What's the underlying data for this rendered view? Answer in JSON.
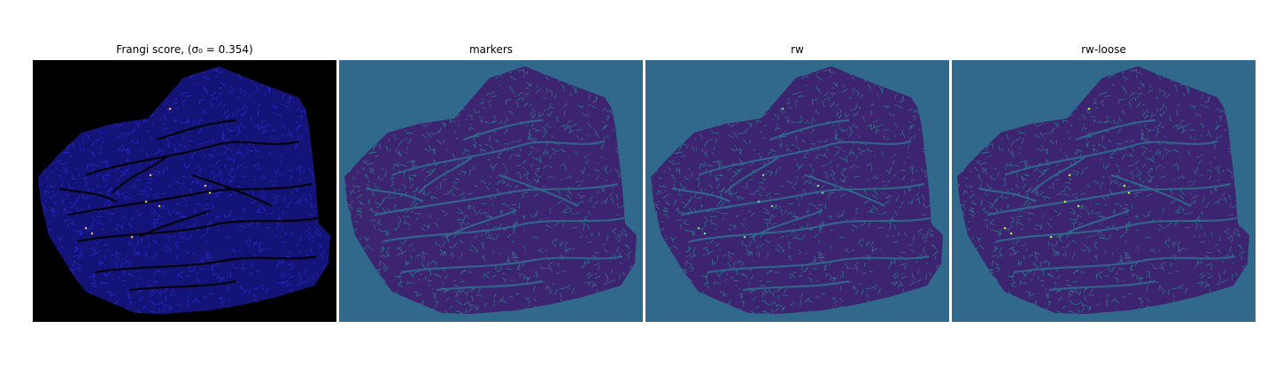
{
  "figure": {
    "panels": [
      {
        "title": "Frangi score, (σ₀ = 0.354)",
        "background": "#000000",
        "fill": "#141478",
        "texture": "#2a2ad0",
        "streak": "#000000",
        "highlight": "#e0b060"
      },
      {
        "title": "markers",
        "background": "#30698c",
        "fill": "#3d2470",
        "texture": "#2f7a8a",
        "streak": "#30698c",
        "highlight": ""
      },
      {
        "title": "rw",
        "background": "#30698c",
        "fill": "#3d2470",
        "texture": "#2f7a8a",
        "streak": "#30698c",
        "highlight": "#6fd08c"
      },
      {
        "title": "rw-loose",
        "background": "#30698c",
        "fill": "#3d2470",
        "texture": "#2f7a8a",
        "streak": "#30698c",
        "highlight": "#b8e050"
      }
    ]
  }
}
